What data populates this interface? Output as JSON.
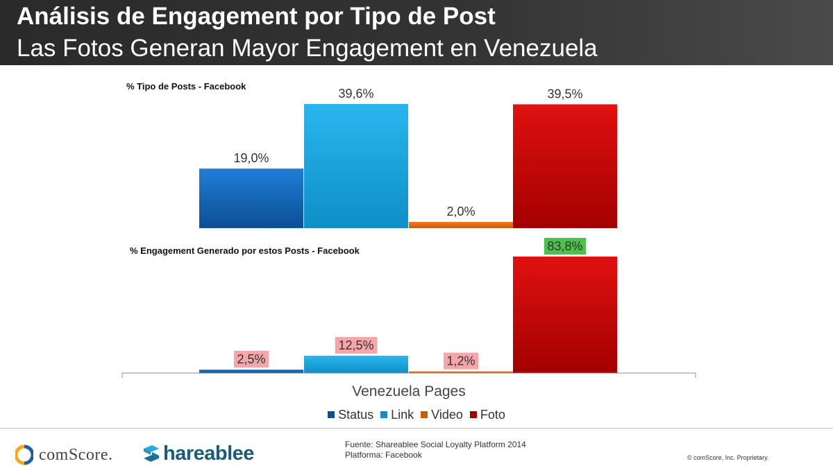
{
  "header": {
    "title": "Análisis de Engagement por Tipo de Post",
    "subtitle": "Las Fotos Generan Mayor Engagement en Venezuela"
  },
  "chart_data": [
    {
      "type": "bar",
      "title": "% Tipo de Posts - Facebook",
      "categories": [
        "Status",
        "Link",
        "Video",
        "Foto"
      ],
      "values": [
        19.0,
        39.6,
        2.0,
        39.5
      ],
      "labels": [
        "19,0%",
        "39,6%",
        "2,0%",
        "39,5%"
      ],
      "ylim": [
        0,
        39.6
      ]
    },
    {
      "type": "bar",
      "title": "% Engagement Generado por estos Posts - Facebook",
      "categories": [
        "Status",
        "Link",
        "Video",
        "Foto"
      ],
      "values": [
        2.5,
        12.5,
        1.2,
        83.8
      ],
      "labels": [
        "2,5%",
        "12,5%",
        "1,2%",
        "83,8%"
      ],
      "label_highlights": [
        "#f4a6ab",
        "#f4a6ab",
        "#f4a6ab",
        "#4cc14c"
      ],
      "ylim": [
        0,
        83.8
      ],
      "xlabel": "Venezuela Pages"
    }
  ],
  "series_colors": {
    "Status": [
      "#1f7ed6",
      "#0b4f95"
    ],
    "Link": [
      "#29b6ee",
      "#0f8fc6"
    ],
    "Video": [
      "#f07a22",
      "#c95b0c"
    ],
    "Foto": [
      "#e01010",
      "#a30000"
    ]
  },
  "legend": [
    "Status",
    "Link",
    "Video",
    "Foto"
  ],
  "footer": {
    "comscore": "comScore.",
    "shareablee": "hareablee",
    "source_line1": "Fuente: Shareablee Social Loyalty Platform 2014",
    "source_line2": "Platforma: Facebook",
    "copyright": "© comScore, Inc. Proprietary."
  }
}
